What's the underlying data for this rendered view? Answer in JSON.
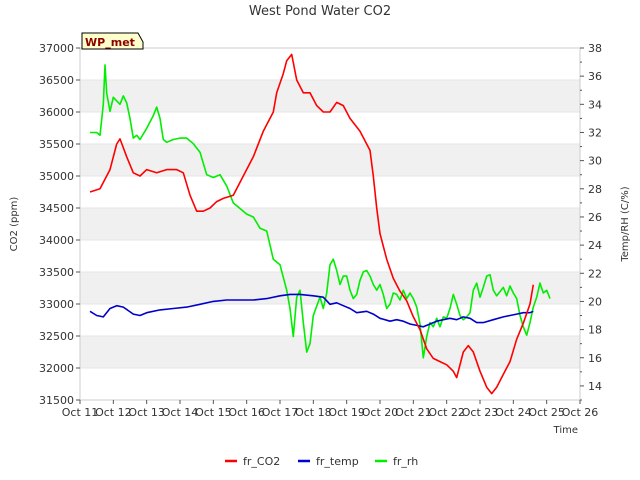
{
  "chart_data": {
    "type": "line",
    "title": "West Pond Water CO2",
    "xlabel": "Time",
    "ylabel_left": "CO2 (ppm)",
    "ylabel_right": "Temp/RH (C/%)",
    "badge": "WP_met",
    "x_ticks": [
      "Oct 11",
      "Oct 12",
      "Oct 13",
      "Oct 14",
      "Oct 15",
      "Oct 16",
      "Oct 17",
      "Oct 18",
      "Oct 19",
      "Oct 20",
      "Oct 21",
      "Oct 22",
      "Oct 23",
      "Oct 24",
      "Oct 25",
      "Oct 26"
    ],
    "y_left_ticks": [
      31500,
      32000,
      32500,
      33000,
      33500,
      34000,
      34500,
      35000,
      35500,
      36000,
      36500,
      37000
    ],
    "y_right_ticks": [
      14,
      16,
      18,
      20,
      22,
      24,
      26,
      28,
      30,
      32,
      34,
      36,
      38
    ],
    "xlim_days": [
      11,
      26
    ],
    "ylim_left": [
      31500,
      37000
    ],
    "ylim_right": [
      13,
      38
    ],
    "grid": "horizontal bands",
    "legend_position": "bottom-center",
    "series": [
      {
        "name": "fr_CO2",
        "axis": "left",
        "color": "#ff0000",
        "points": [
          [
            11.3,
            34750
          ],
          [
            11.6,
            34800
          ],
          [
            11.9,
            35100
          ],
          [
            12.1,
            35500
          ],
          [
            12.2,
            35580
          ],
          [
            12.4,
            35300
          ],
          [
            12.6,
            35050
          ],
          [
            12.8,
            35000
          ],
          [
            13.0,
            35100
          ],
          [
            13.3,
            35050
          ],
          [
            13.6,
            35100
          ],
          [
            13.9,
            35100
          ],
          [
            14.1,
            35050
          ],
          [
            14.3,
            34700
          ],
          [
            14.5,
            34450
          ],
          [
            14.7,
            34450
          ],
          [
            14.9,
            34500
          ],
          [
            15.1,
            34600
          ],
          [
            15.3,
            34650
          ],
          [
            15.6,
            34700
          ],
          [
            15.9,
            35000
          ],
          [
            16.2,
            35300
          ],
          [
            16.5,
            35700
          ],
          [
            16.8,
            36000
          ],
          [
            16.9,
            36300
          ],
          [
            17.1,
            36600
          ],
          [
            17.2,
            36800
          ],
          [
            17.35,
            36900
          ],
          [
            17.5,
            36500
          ],
          [
            17.7,
            36300
          ],
          [
            17.9,
            36300
          ],
          [
            18.1,
            36100
          ],
          [
            18.3,
            36000
          ],
          [
            18.5,
            36000
          ],
          [
            18.7,
            36150
          ],
          [
            18.9,
            36100
          ],
          [
            19.1,
            35900
          ],
          [
            19.4,
            35700
          ],
          [
            19.7,
            35400
          ],
          [
            19.8,
            35000
          ],
          [
            19.9,
            34500
          ],
          [
            20.0,
            34100
          ],
          [
            20.2,
            33700
          ],
          [
            20.4,
            33400
          ],
          [
            20.6,
            33200
          ],
          [
            20.8,
            33050
          ],
          [
            21.0,
            32800
          ],
          [
            21.2,
            32600
          ],
          [
            21.4,
            32300
          ],
          [
            21.6,
            32150
          ],
          [
            21.8,
            32100
          ],
          [
            22.0,
            32050
          ],
          [
            22.2,
            31950
          ],
          [
            22.3,
            31850
          ],
          [
            22.5,
            32250
          ],
          [
            22.65,
            32350
          ],
          [
            22.8,
            32250
          ],
          [
            23.0,
            31950
          ],
          [
            23.2,
            31700
          ],
          [
            23.35,
            31600
          ],
          [
            23.5,
            31700
          ],
          [
            23.7,
            31900
          ],
          [
            23.9,
            32100
          ],
          [
            24.1,
            32450
          ],
          [
            24.3,
            32700
          ],
          [
            24.5,
            33000
          ],
          [
            24.6,
            33300
          ]
        ]
      },
      {
        "name": "fr_temp",
        "axis": "right",
        "color": "#0000cc",
        "points": [
          [
            11.3,
            19.3
          ],
          [
            11.5,
            19.0
          ],
          [
            11.7,
            18.9
          ],
          [
            11.9,
            19.5
          ],
          [
            12.1,
            19.7
          ],
          [
            12.3,
            19.6
          ],
          [
            12.6,
            19.1
          ],
          [
            12.8,
            19.0
          ],
          [
            13.0,
            19.2
          ],
          [
            13.4,
            19.4
          ],
          [
            13.8,
            19.5
          ],
          [
            14.2,
            19.6
          ],
          [
            14.6,
            19.8
          ],
          [
            15.0,
            20.0
          ],
          [
            15.4,
            20.1
          ],
          [
            15.8,
            20.1
          ],
          [
            16.2,
            20.1
          ],
          [
            16.6,
            20.2
          ],
          [
            17.0,
            20.4
          ],
          [
            17.3,
            20.5
          ],
          [
            17.6,
            20.5
          ],
          [
            18.0,
            20.4
          ],
          [
            18.3,
            20.3
          ],
          [
            18.5,
            19.8
          ],
          [
            18.7,
            19.9
          ],
          [
            18.9,
            19.7
          ],
          [
            19.1,
            19.5
          ],
          [
            19.3,
            19.2
          ],
          [
            19.6,
            19.3
          ],
          [
            19.8,
            19.1
          ],
          [
            20.0,
            18.8
          ],
          [
            20.3,
            18.6
          ],
          [
            20.5,
            18.7
          ],
          [
            20.7,
            18.6
          ],
          [
            20.9,
            18.4
          ],
          [
            21.1,
            18.3
          ],
          [
            21.3,
            18.2
          ],
          [
            21.5,
            18.4
          ],
          [
            21.7,
            18.6
          ],
          [
            21.9,
            18.7
          ],
          [
            22.1,
            18.8
          ],
          [
            22.3,
            18.7
          ],
          [
            22.5,
            18.9
          ],
          [
            22.7,
            18.8
          ],
          [
            22.9,
            18.5
          ],
          [
            23.1,
            18.5
          ],
          [
            23.4,
            18.7
          ],
          [
            23.7,
            18.9
          ],
          [
            23.9,
            19.0
          ],
          [
            24.1,
            19.1
          ],
          [
            24.3,
            19.2
          ],
          [
            24.5,
            19.2
          ],
          [
            24.6,
            19.3
          ]
        ]
      },
      {
        "name": "fr_rh",
        "axis": "right",
        "color": "#00ee00",
        "points": [
          [
            11.3,
            32.0
          ],
          [
            11.5,
            32.0
          ],
          [
            11.6,
            31.8
          ],
          [
            11.7,
            34.0
          ],
          [
            11.75,
            36.8
          ],
          [
            11.8,
            34.8
          ],
          [
            11.9,
            33.5
          ],
          [
            12.0,
            34.5
          ],
          [
            12.2,
            34.0
          ],
          [
            12.3,
            34.6
          ],
          [
            12.4,
            34.1
          ],
          [
            12.5,
            33.0
          ],
          [
            12.6,
            31.6
          ],
          [
            12.7,
            31.8
          ],
          [
            12.8,
            31.5
          ],
          [
            13.0,
            32.3
          ],
          [
            13.2,
            33.2
          ],
          [
            13.3,
            33.8
          ],
          [
            13.4,
            33.0
          ],
          [
            13.5,
            31.5
          ],
          [
            13.6,
            31.3
          ],
          [
            13.8,
            31.5
          ],
          [
            14.0,
            31.6
          ],
          [
            14.2,
            31.6
          ],
          [
            14.4,
            31.2
          ],
          [
            14.6,
            30.6
          ],
          [
            14.8,
            29.0
          ],
          [
            15.0,
            28.8
          ],
          [
            15.2,
            29.0
          ],
          [
            15.4,
            28.2
          ],
          [
            15.6,
            27.0
          ],
          [
            15.8,
            26.6
          ],
          [
            16.0,
            26.2
          ],
          [
            16.2,
            26.0
          ],
          [
            16.4,
            25.2
          ],
          [
            16.6,
            25.0
          ],
          [
            16.8,
            23.0
          ],
          [
            17.0,
            22.6
          ],
          [
            17.2,
            20.8
          ],
          [
            17.3,
            19.5
          ],
          [
            17.4,
            17.5
          ],
          [
            17.5,
            20.3
          ],
          [
            17.6,
            20.8
          ],
          [
            17.7,
            18.5
          ],
          [
            17.8,
            16.4
          ],
          [
            17.9,
            17.0
          ],
          [
            18.0,
            19.0
          ],
          [
            18.2,
            20.3
          ],
          [
            18.3,
            19.5
          ],
          [
            18.4,
            20.6
          ],
          [
            18.5,
            22.6
          ],
          [
            18.6,
            23.0
          ],
          [
            18.7,
            22.2
          ],
          [
            18.8,
            21.2
          ],
          [
            18.9,
            21.8
          ],
          [
            19.0,
            21.8
          ],
          [
            19.1,
            20.8
          ],
          [
            19.2,
            20.2
          ],
          [
            19.3,
            20.5
          ],
          [
            19.4,
            21.5
          ],
          [
            19.5,
            22.1
          ],
          [
            19.6,
            22.2
          ],
          [
            19.7,
            21.8
          ],
          [
            19.8,
            21.2
          ],
          [
            19.9,
            20.8
          ],
          [
            20.0,
            21.2
          ],
          [
            20.1,
            20.5
          ],
          [
            20.2,
            19.5
          ],
          [
            20.3,
            19.8
          ],
          [
            20.4,
            20.6
          ],
          [
            20.5,
            20.5
          ],
          [
            20.6,
            20.1
          ],
          [
            20.7,
            20.8
          ],
          [
            20.8,
            20.2
          ],
          [
            20.9,
            20.6
          ],
          [
            21.0,
            20.2
          ],
          [
            21.1,
            19.6
          ],
          [
            21.2,
            18.4
          ],
          [
            21.3,
            16.0
          ],
          [
            21.4,
            17.5
          ],
          [
            21.5,
            18.5
          ],
          [
            21.6,
            18.2
          ],
          [
            21.7,
            18.8
          ],
          [
            21.8,
            18.2
          ],
          [
            21.9,
            18.9
          ],
          [
            22.0,
            18.8
          ],
          [
            22.1,
            19.5
          ],
          [
            22.2,
            20.5
          ],
          [
            22.3,
            19.8
          ],
          [
            22.4,
            19.0
          ],
          [
            22.5,
            18.7
          ],
          [
            22.6,
            18.9
          ],
          [
            22.7,
            19.2
          ],
          [
            22.8,
            20.8
          ],
          [
            22.9,
            21.3
          ],
          [
            23.0,
            20.3
          ],
          [
            23.1,
            21.0
          ],
          [
            23.2,
            21.8
          ],
          [
            23.3,
            21.9
          ],
          [
            23.4,
            20.8
          ],
          [
            23.5,
            20.4
          ],
          [
            23.6,
            20.7
          ],
          [
            23.7,
            21.0
          ],
          [
            23.8,
            20.4
          ],
          [
            23.9,
            21.1
          ],
          [
            24.0,
            20.6
          ],
          [
            24.1,
            20.2
          ],
          [
            24.2,
            19.0
          ],
          [
            24.3,
            18.2
          ],
          [
            24.4,
            17.6
          ],
          [
            24.5,
            18.5
          ],
          [
            24.6,
            19.6
          ],
          [
            24.7,
            20.3
          ],
          [
            24.8,
            21.3
          ],
          [
            24.9,
            20.6
          ],
          [
            25.0,
            20.8
          ],
          [
            25.1,
            20.2
          ]
        ]
      }
    ]
  }
}
